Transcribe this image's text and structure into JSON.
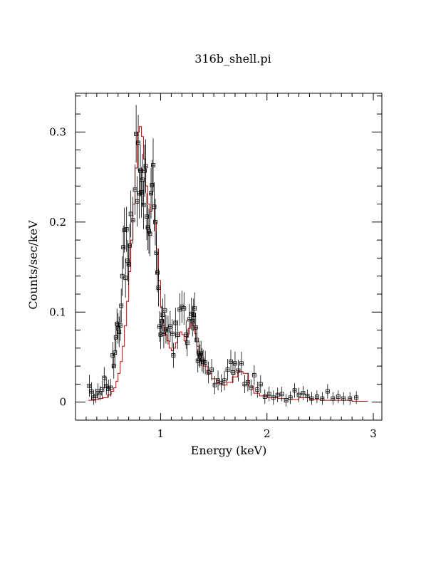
{
  "chart_data": {
    "type": "scatter",
    "title": "316b_shell.pi",
    "xlabel": "Energy (keV)",
    "ylabel": "Counts/sec/keV",
    "xlim": [
      0.2,
      3.08
    ],
    "ylim": [
      -0.02,
      0.343
    ],
    "x_major_ticks": [
      1,
      2,
      3
    ],
    "y_major_ticks": [
      0,
      0.1,
      0.2,
      0.3
    ],
    "x_tick_labels": [
      "1",
      "2",
      "3"
    ],
    "y_tick_labels": [
      "0",
      "0.1",
      "0.2",
      "0.3"
    ],
    "grid": false,
    "legend": "none",
    "data_color": "#000000",
    "model_color": "#cc0000",
    "series": [
      {
        "kind": "data-points",
        "points": [
          [
            0.33,
            0.018,
            0.012
          ],
          [
            0.35,
            0.012,
            0.01
          ],
          [
            0.37,
            0.005,
            0.008
          ],
          [
            0.39,
            0.007,
            0.008
          ],
          [
            0.41,
            0.012,
            0.009
          ],
          [
            0.43,
            0.01,
            0.008
          ],
          [
            0.45,
            0.014,
            0.01
          ],
          [
            0.47,
            0.027,
            0.012
          ],
          [
            0.49,
            0.018,
            0.01
          ],
          [
            0.51,
            0.015,
            0.01
          ],
          [
            0.53,
            0.016,
            0.01
          ],
          [
            0.55,
            0.052,
            0.015
          ],
          [
            0.56,
            0.04,
            0.014
          ],
          [
            0.57,
            0.055,
            0.015
          ],
          [
            0.58,
            0.072,
            0.016
          ],
          [
            0.59,
            0.087,
            0.017
          ],
          [
            0.6,
            0.082,
            0.017
          ],
          [
            0.61,
            0.078,
            0.017
          ],
          [
            0.62,
            0.085,
            0.017
          ],
          [
            0.63,
            0.107,
            0.019
          ],
          [
            0.64,
            0.14,
            0.022
          ],
          [
            0.65,
            0.172,
            0.024
          ],
          [
            0.66,
            0.191,
            0.025
          ],
          [
            0.67,
            0.138,
            0.022
          ],
          [
            0.68,
            0.192,
            0.025
          ],
          [
            0.69,
            0.157,
            0.023
          ],
          [
            0.7,
            0.153,
            0.023
          ],
          [
            0.71,
            0.174,
            0.024
          ],
          [
            0.72,
            0.209,
            0.026
          ],
          [
            0.74,
            0.202,
            0.026
          ],
          [
            0.76,
            0.236,
            0.028
          ],
          [
            0.77,
            0.298,
            0.032
          ],
          [
            0.78,
            0.223,
            0.028
          ],
          [
            0.79,
            0.288,
            0.031
          ],
          [
            0.8,
            0.232,
            0.028
          ],
          [
            0.81,
            0.257,
            0.029
          ],
          [
            0.82,
            0.233,
            0.028
          ],
          [
            0.83,
            0.247,
            0.029
          ],
          [
            0.84,
            0.219,
            0.027
          ],
          [
            0.85,
            0.257,
            0.029
          ],
          [
            0.86,
            0.262,
            0.03
          ],
          [
            0.87,
            0.206,
            0.026
          ],
          [
            0.88,
            0.194,
            0.025
          ],
          [
            0.89,
            0.19,
            0.025
          ],
          [
            0.9,
            0.187,
            0.025
          ],
          [
            0.91,
            0.232,
            0.028
          ],
          [
            0.92,
            0.241,
            0.028
          ],
          [
            0.93,
            0.263,
            0.03
          ],
          [
            0.94,
            0.217,
            0.027
          ],
          [
            0.95,
            0.2,
            0.026
          ],
          [
            0.96,
            0.166,
            0.024
          ],
          [
            0.97,
            0.144,
            0.022
          ],
          [
            0.98,
            0.127,
            0.021
          ],
          [
            0.99,
            0.084,
            0.017
          ],
          [
            1.0,
            0.075,
            0.016
          ],
          [
            1.01,
            0.09,
            0.017
          ],
          [
            1.02,
            0.097,
            0.018
          ],
          [
            1.03,
            0.076,
            0.016
          ],
          [
            1.04,
            0.102,
            0.018
          ],
          [
            1.05,
            0.081,
            0.016
          ],
          [
            1.07,
            0.08,
            0.016
          ],
          [
            1.09,
            0.084,
            0.017
          ],
          [
            1.11,
            0.076,
            0.016
          ],
          [
            1.12,
            0.052,
            0.014
          ],
          [
            1.14,
            0.088,
            0.017
          ],
          [
            1.16,
            0.075,
            0.016
          ],
          [
            1.18,
            0.103,
            0.018
          ],
          [
            1.2,
            0.106,
            0.018
          ],
          [
            1.22,
            0.104,
            0.018
          ],
          [
            1.24,
            0.075,
            0.016
          ],
          [
            1.25,
            0.066,
            0.015
          ],
          [
            1.27,
            0.092,
            0.017
          ],
          [
            1.29,
            0.098,
            0.018
          ],
          [
            1.3,
            0.09,
            0.017
          ],
          [
            1.31,
            0.097,
            0.018
          ],
          [
            1.32,
            0.104,
            0.018
          ],
          [
            1.33,
            0.083,
            0.016
          ],
          [
            1.34,
            0.069,
            0.015
          ],
          [
            1.35,
            0.046,
            0.013
          ],
          [
            1.36,
            0.054,
            0.014
          ],
          [
            1.37,
            0.051,
            0.013
          ],
          [
            1.38,
            0.054,
            0.014
          ],
          [
            1.39,
            0.047,
            0.013
          ],
          [
            1.4,
            0.045,
            0.013
          ],
          [
            1.42,
            0.044,
            0.013
          ],
          [
            1.45,
            0.033,
            0.012
          ],
          [
            1.48,
            0.036,
            0.012
          ],
          [
            1.51,
            0.019,
            0.01
          ],
          [
            1.54,
            0.024,
            0.011
          ],
          [
            1.57,
            0.021,
            0.01
          ],
          [
            1.6,
            0.024,
            0.011
          ],
          [
            1.63,
            0.036,
            0.012
          ],
          [
            1.66,
            0.045,
            0.013
          ],
          [
            1.68,
            0.033,
            0.012
          ],
          [
            1.7,
            0.043,
            0.013
          ],
          [
            1.73,
            0.035,
            0.012
          ],
          [
            1.76,
            0.043,
            0.013
          ],
          [
            1.79,
            0.02,
            0.01
          ],
          [
            1.82,
            0.022,
            0.01
          ],
          [
            1.85,
            0.016,
            0.009
          ],
          [
            1.88,
            0.03,
            0.011
          ],
          [
            1.91,
            0.014,
            0.009
          ],
          [
            1.94,
            0.02,
            0.01
          ],
          [
            1.98,
            0.006,
            0.008
          ],
          [
            2.02,
            0.009,
            0.008
          ],
          [
            2.06,
            0.005,
            0.008
          ],
          [
            2.1,
            0.008,
            0.008
          ],
          [
            2.14,
            0.009,
            0.008
          ],
          [
            2.18,
            0.002,
            0.007
          ],
          [
            2.22,
            0.005,
            0.007
          ],
          [
            2.26,
            0.013,
            0.008
          ],
          [
            2.3,
            0.008,
            0.008
          ],
          [
            2.34,
            0.01,
            0.008
          ],
          [
            2.38,
            0.007,
            0.007
          ],
          [
            2.42,
            0.004,
            0.007
          ],
          [
            2.47,
            0.006,
            0.007
          ],
          [
            2.52,
            0.004,
            0.007
          ],
          [
            2.57,
            0.012,
            0.008
          ],
          [
            2.62,
            0.004,
            0.007
          ],
          [
            2.67,
            0.006,
            0.007
          ],
          [
            2.72,
            0.004,
            0.007
          ],
          [
            2.78,
            0.004,
            0.007
          ],
          [
            2.84,
            0.005,
            0.007
          ]
        ]
      },
      {
        "kind": "model-histogram",
        "points": [
          [
            0.32,
            0.002
          ],
          [
            0.36,
            0.002
          ],
          [
            0.4,
            0.003
          ],
          [
            0.44,
            0.004
          ],
          [
            0.48,
            0.005
          ],
          [
            0.52,
            0.008
          ],
          [
            0.55,
            0.012
          ],
          [
            0.57,
            0.016
          ],
          [
            0.59,
            0.023
          ],
          [
            0.61,
            0.032
          ],
          [
            0.63,
            0.045
          ],
          [
            0.65,
            0.062
          ],
          [
            0.67,
            0.085
          ],
          [
            0.69,
            0.112
          ],
          [
            0.71,
            0.145
          ],
          [
            0.73,
            0.18
          ],
          [
            0.75,
            0.22
          ],
          [
            0.77,
            0.26
          ],
          [
            0.79,
            0.3
          ],
          [
            0.81,
            0.306
          ],
          [
            0.83,
            0.295
          ],
          [
            0.85,
            0.27
          ],
          [
            0.87,
            0.24
          ],
          [
            0.89,
            0.22
          ],
          [
            0.91,
            0.212
          ],
          [
            0.93,
            0.215
          ],
          [
            0.95,
            0.2
          ],
          [
            0.97,
            0.17
          ],
          [
            0.99,
            0.135
          ],
          [
            1.01,
            0.105
          ],
          [
            1.03,
            0.085
          ],
          [
            1.05,
            0.075
          ],
          [
            1.07,
            0.068
          ],
          [
            1.09,
            0.06
          ],
          [
            1.11,
            0.057
          ],
          [
            1.13,
            0.06
          ],
          [
            1.15,
            0.066
          ],
          [
            1.17,
            0.073
          ],
          [
            1.19,
            0.078
          ],
          [
            1.21,
            0.075
          ],
          [
            1.23,
            0.068
          ],
          [
            1.25,
            0.072
          ],
          [
            1.27,
            0.082
          ],
          [
            1.29,
            0.088
          ],
          [
            1.31,
            0.085
          ],
          [
            1.33,
            0.076
          ],
          [
            1.35,
            0.062
          ],
          [
            1.37,
            0.052
          ],
          [
            1.39,
            0.046
          ],
          [
            1.42,
            0.04
          ],
          [
            1.46,
            0.032
          ],
          [
            1.5,
            0.026
          ],
          [
            1.55,
            0.021
          ],
          [
            1.6,
            0.019
          ],
          [
            1.65,
            0.022
          ],
          [
            1.7,
            0.028
          ],
          [
            1.75,
            0.034
          ],
          [
            1.8,
            0.032
          ],
          [
            1.85,
            0.018
          ],
          [
            1.9,
            0.01
          ],
          [
            1.96,
            0.007
          ],
          [
            2.05,
            0.005
          ],
          [
            2.15,
            0.004
          ],
          [
            2.25,
            0.003
          ],
          [
            2.35,
            0.005
          ],
          [
            2.45,
            0.003
          ],
          [
            2.55,
            0.002
          ],
          [
            2.65,
            0.002
          ],
          [
            2.75,
            0.002
          ],
          [
            2.85,
            0.001
          ],
          [
            2.95,
            0.001
          ]
        ]
      }
    ]
  }
}
